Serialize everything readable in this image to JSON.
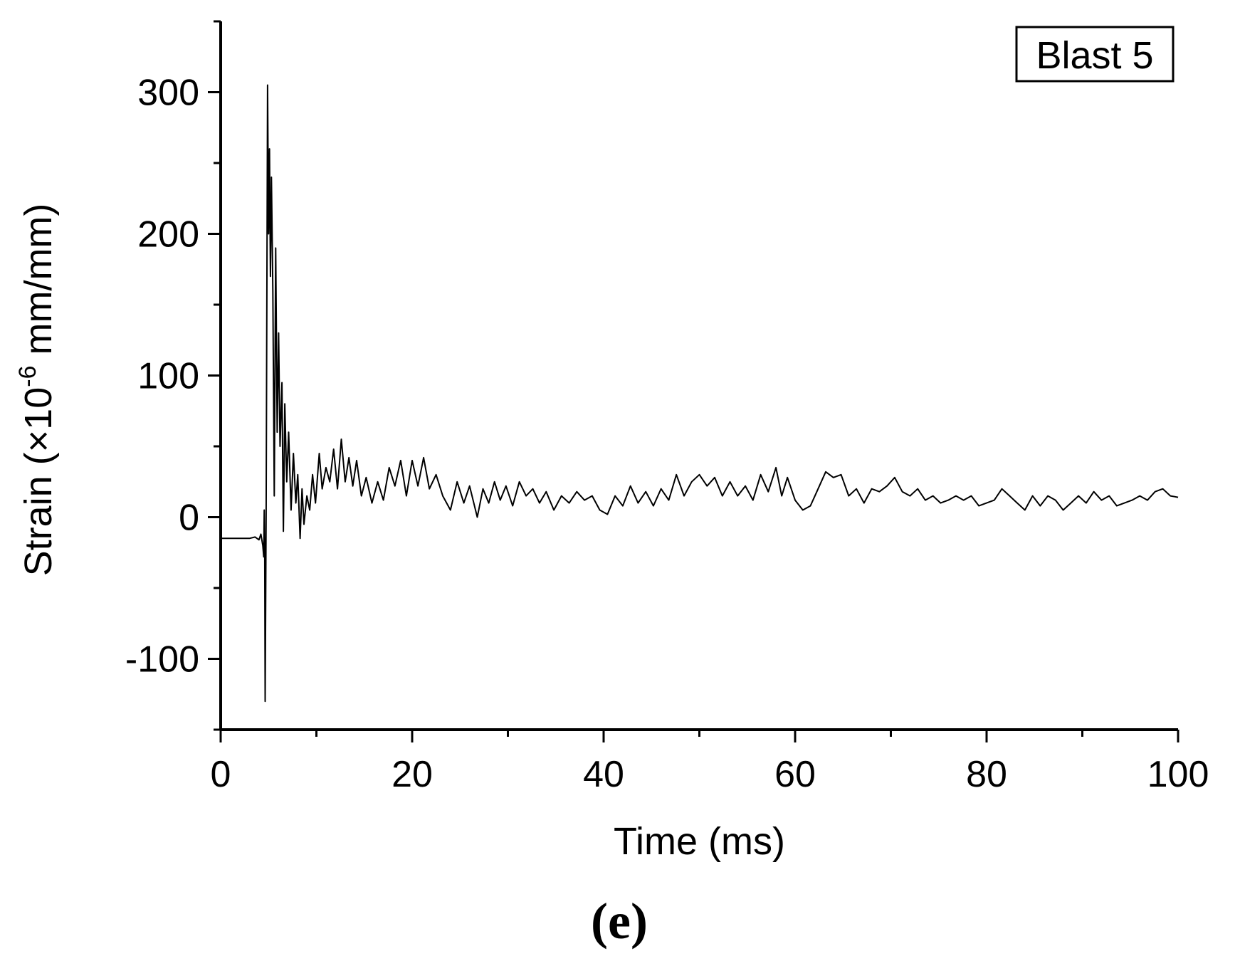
{
  "chart_data": {
    "type": "line",
    "xlabel": "Time (ms)",
    "ylabel_prefix": "Strain (×10",
    "ylabel_exponent": "-6",
    "ylabel_suffix": " mm/mm)",
    "xlim": [
      0,
      100
    ],
    "ylim": [
      -150,
      350
    ],
    "x_ticks": [
      0,
      20,
      40,
      60,
      80,
      100
    ],
    "x_tick_labels": [
      "0",
      "20",
      "40",
      "60",
      "80",
      "100"
    ],
    "y_ticks": [
      -100,
      0,
      100,
      200,
      300
    ],
    "y_tick_labels": [
      "-100",
      "0",
      "100",
      "200",
      "300"
    ],
    "grid": false,
    "legend": {
      "label": "Blast 5",
      "placement": "top-right"
    },
    "panel_label": "(e)",
    "series": [
      {
        "values": [
          [
            0,
            -15
          ],
          [
            1,
            -15
          ],
          [
            2,
            -15
          ],
          [
            3,
            -15
          ],
          [
            3.6,
            -14
          ],
          [
            4,
            -16
          ],
          [
            4.2,
            -12
          ],
          [
            4.4,
            -20
          ],
          [
            4.5,
            -28
          ],
          [
            4.55,
            5
          ],
          [
            4.6,
            -25
          ],
          [
            4.65,
            -130
          ],
          [
            4.75,
            5
          ],
          [
            4.9,
            305
          ],
          [
            5.0,
            200
          ],
          [
            5.1,
            260
          ],
          [
            5.2,
            170
          ],
          [
            5.3,
            240
          ],
          [
            5.45,
            160
          ],
          [
            5.6,
            15
          ],
          [
            5.75,
            190
          ],
          [
            5.9,
            60
          ],
          [
            6.05,
            130
          ],
          [
            6.2,
            50
          ],
          [
            6.4,
            95
          ],
          [
            6.55,
            -10
          ],
          [
            6.7,
            80
          ],
          [
            6.9,
            25
          ],
          [
            7.1,
            60
          ],
          [
            7.35,
            5
          ],
          [
            7.6,
            45
          ],
          [
            7.85,
            10
          ],
          [
            8.05,
            30
          ],
          [
            8.3,
            -15
          ],
          [
            8.5,
            20
          ],
          [
            8.7,
            -5
          ],
          [
            9.0,
            15
          ],
          [
            9.3,
            5
          ],
          [
            9.6,
            30
          ],
          [
            9.9,
            10
          ],
          [
            10.3,
            45
          ],
          [
            10.6,
            20
          ],
          [
            11.0,
            35
          ],
          [
            11.4,
            25
          ],
          [
            11.8,
            48
          ],
          [
            12.2,
            20
          ],
          [
            12.6,
            55
          ],
          [
            13.0,
            25
          ],
          [
            13.4,
            42
          ],
          [
            13.8,
            22
          ],
          [
            14.2,
            40
          ],
          [
            14.7,
            15
          ],
          [
            15.2,
            28
          ],
          [
            15.8,
            10
          ],
          [
            16.4,
            25
          ],
          [
            17.0,
            12
          ],
          [
            17.6,
            35
          ],
          [
            18.2,
            22
          ],
          [
            18.8,
            40
          ],
          [
            19.4,
            15
          ],
          [
            20.0,
            40
          ],
          [
            20.6,
            22
          ],
          [
            21.2,
            42
          ],
          [
            21.8,
            20
          ],
          [
            22.5,
            30
          ],
          [
            23.2,
            15
          ],
          [
            24.0,
            5
          ],
          [
            24.7,
            25
          ],
          [
            25.4,
            10
          ],
          [
            26.0,
            22
          ],
          [
            26.8,
            0
          ],
          [
            27.4,
            20
          ],
          [
            28.0,
            10
          ],
          [
            28.6,
            25
          ],
          [
            29.2,
            12
          ],
          [
            29.8,
            22
          ],
          [
            30.5,
            8
          ],
          [
            31.2,
            25
          ],
          [
            31.9,
            15
          ],
          [
            32.6,
            20
          ],
          [
            33.3,
            10
          ],
          [
            34.0,
            18
          ],
          [
            34.8,
            5
          ],
          [
            35.6,
            15
          ],
          [
            36.4,
            10
          ],
          [
            37.2,
            18
          ],
          [
            38.0,
            12
          ],
          [
            38.8,
            15
          ],
          [
            39.6,
            5
          ],
          [
            40.4,
            2
          ],
          [
            41.2,
            15
          ],
          [
            42.0,
            8
          ],
          [
            42.8,
            22
          ],
          [
            43.6,
            10
          ],
          [
            44.4,
            18
          ],
          [
            45.2,
            8
          ],
          [
            46.0,
            20
          ],
          [
            46.8,
            12
          ],
          [
            47.6,
            30
          ],
          [
            48.4,
            15
          ],
          [
            49.2,
            25
          ],
          [
            50.0,
            30
          ],
          [
            50.8,
            22
          ],
          [
            51.6,
            28
          ],
          [
            52.4,
            15
          ],
          [
            53.2,
            25
          ],
          [
            54.0,
            15
          ],
          [
            54.8,
            22
          ],
          [
            55.6,
            12
          ],
          [
            56.4,
            30
          ],
          [
            57.2,
            18
          ],
          [
            58.0,
            35
          ],
          [
            58.6,
            15
          ],
          [
            59.2,
            28
          ],
          [
            60.0,
            12
          ],
          [
            60.8,
            5
          ],
          [
            61.6,
            8
          ],
          [
            62.4,
            20
          ],
          [
            63.2,
            32
          ],
          [
            64.0,
            28
          ],
          [
            64.8,
            30
          ],
          [
            65.6,
            15
          ],
          [
            66.4,
            20
          ],
          [
            67.2,
            10
          ],
          [
            68.0,
            20
          ],
          [
            68.8,
            18
          ],
          [
            69.6,
            22
          ],
          [
            70.4,
            28
          ],
          [
            71.2,
            18
          ],
          [
            72.0,
            15
          ],
          [
            72.8,
            20
          ],
          [
            73.6,
            12
          ],
          [
            74.4,
            15
          ],
          [
            75.2,
            10
          ],
          [
            76.0,
            12
          ],
          [
            76.8,
            15
          ],
          [
            77.6,
            12
          ],
          [
            78.4,
            15
          ],
          [
            79.2,
            8
          ],
          [
            80.0,
            10
          ],
          [
            80.8,
            12
          ],
          [
            81.6,
            20
          ],
          [
            82.4,
            15
          ],
          [
            83.2,
            10
          ],
          [
            84.0,
            5
          ],
          [
            84.8,
            15
          ],
          [
            85.6,
            8
          ],
          [
            86.4,
            15
          ],
          [
            87.2,
            12
          ],
          [
            88.0,
            5
          ],
          [
            88.8,
            10
          ],
          [
            89.6,
            15
          ],
          [
            90.4,
            10
          ],
          [
            91.2,
            18
          ],
          [
            92.0,
            12
          ],
          [
            92.8,
            15
          ],
          [
            93.6,
            8
          ],
          [
            94.4,
            10
          ],
          [
            95.2,
            12
          ],
          [
            96.0,
            15
          ],
          [
            96.8,
            12
          ],
          [
            97.6,
            18
          ],
          [
            98.4,
            20
          ],
          [
            99.2,
            15
          ],
          [
            100,
            14
          ]
        ]
      }
    ]
  }
}
